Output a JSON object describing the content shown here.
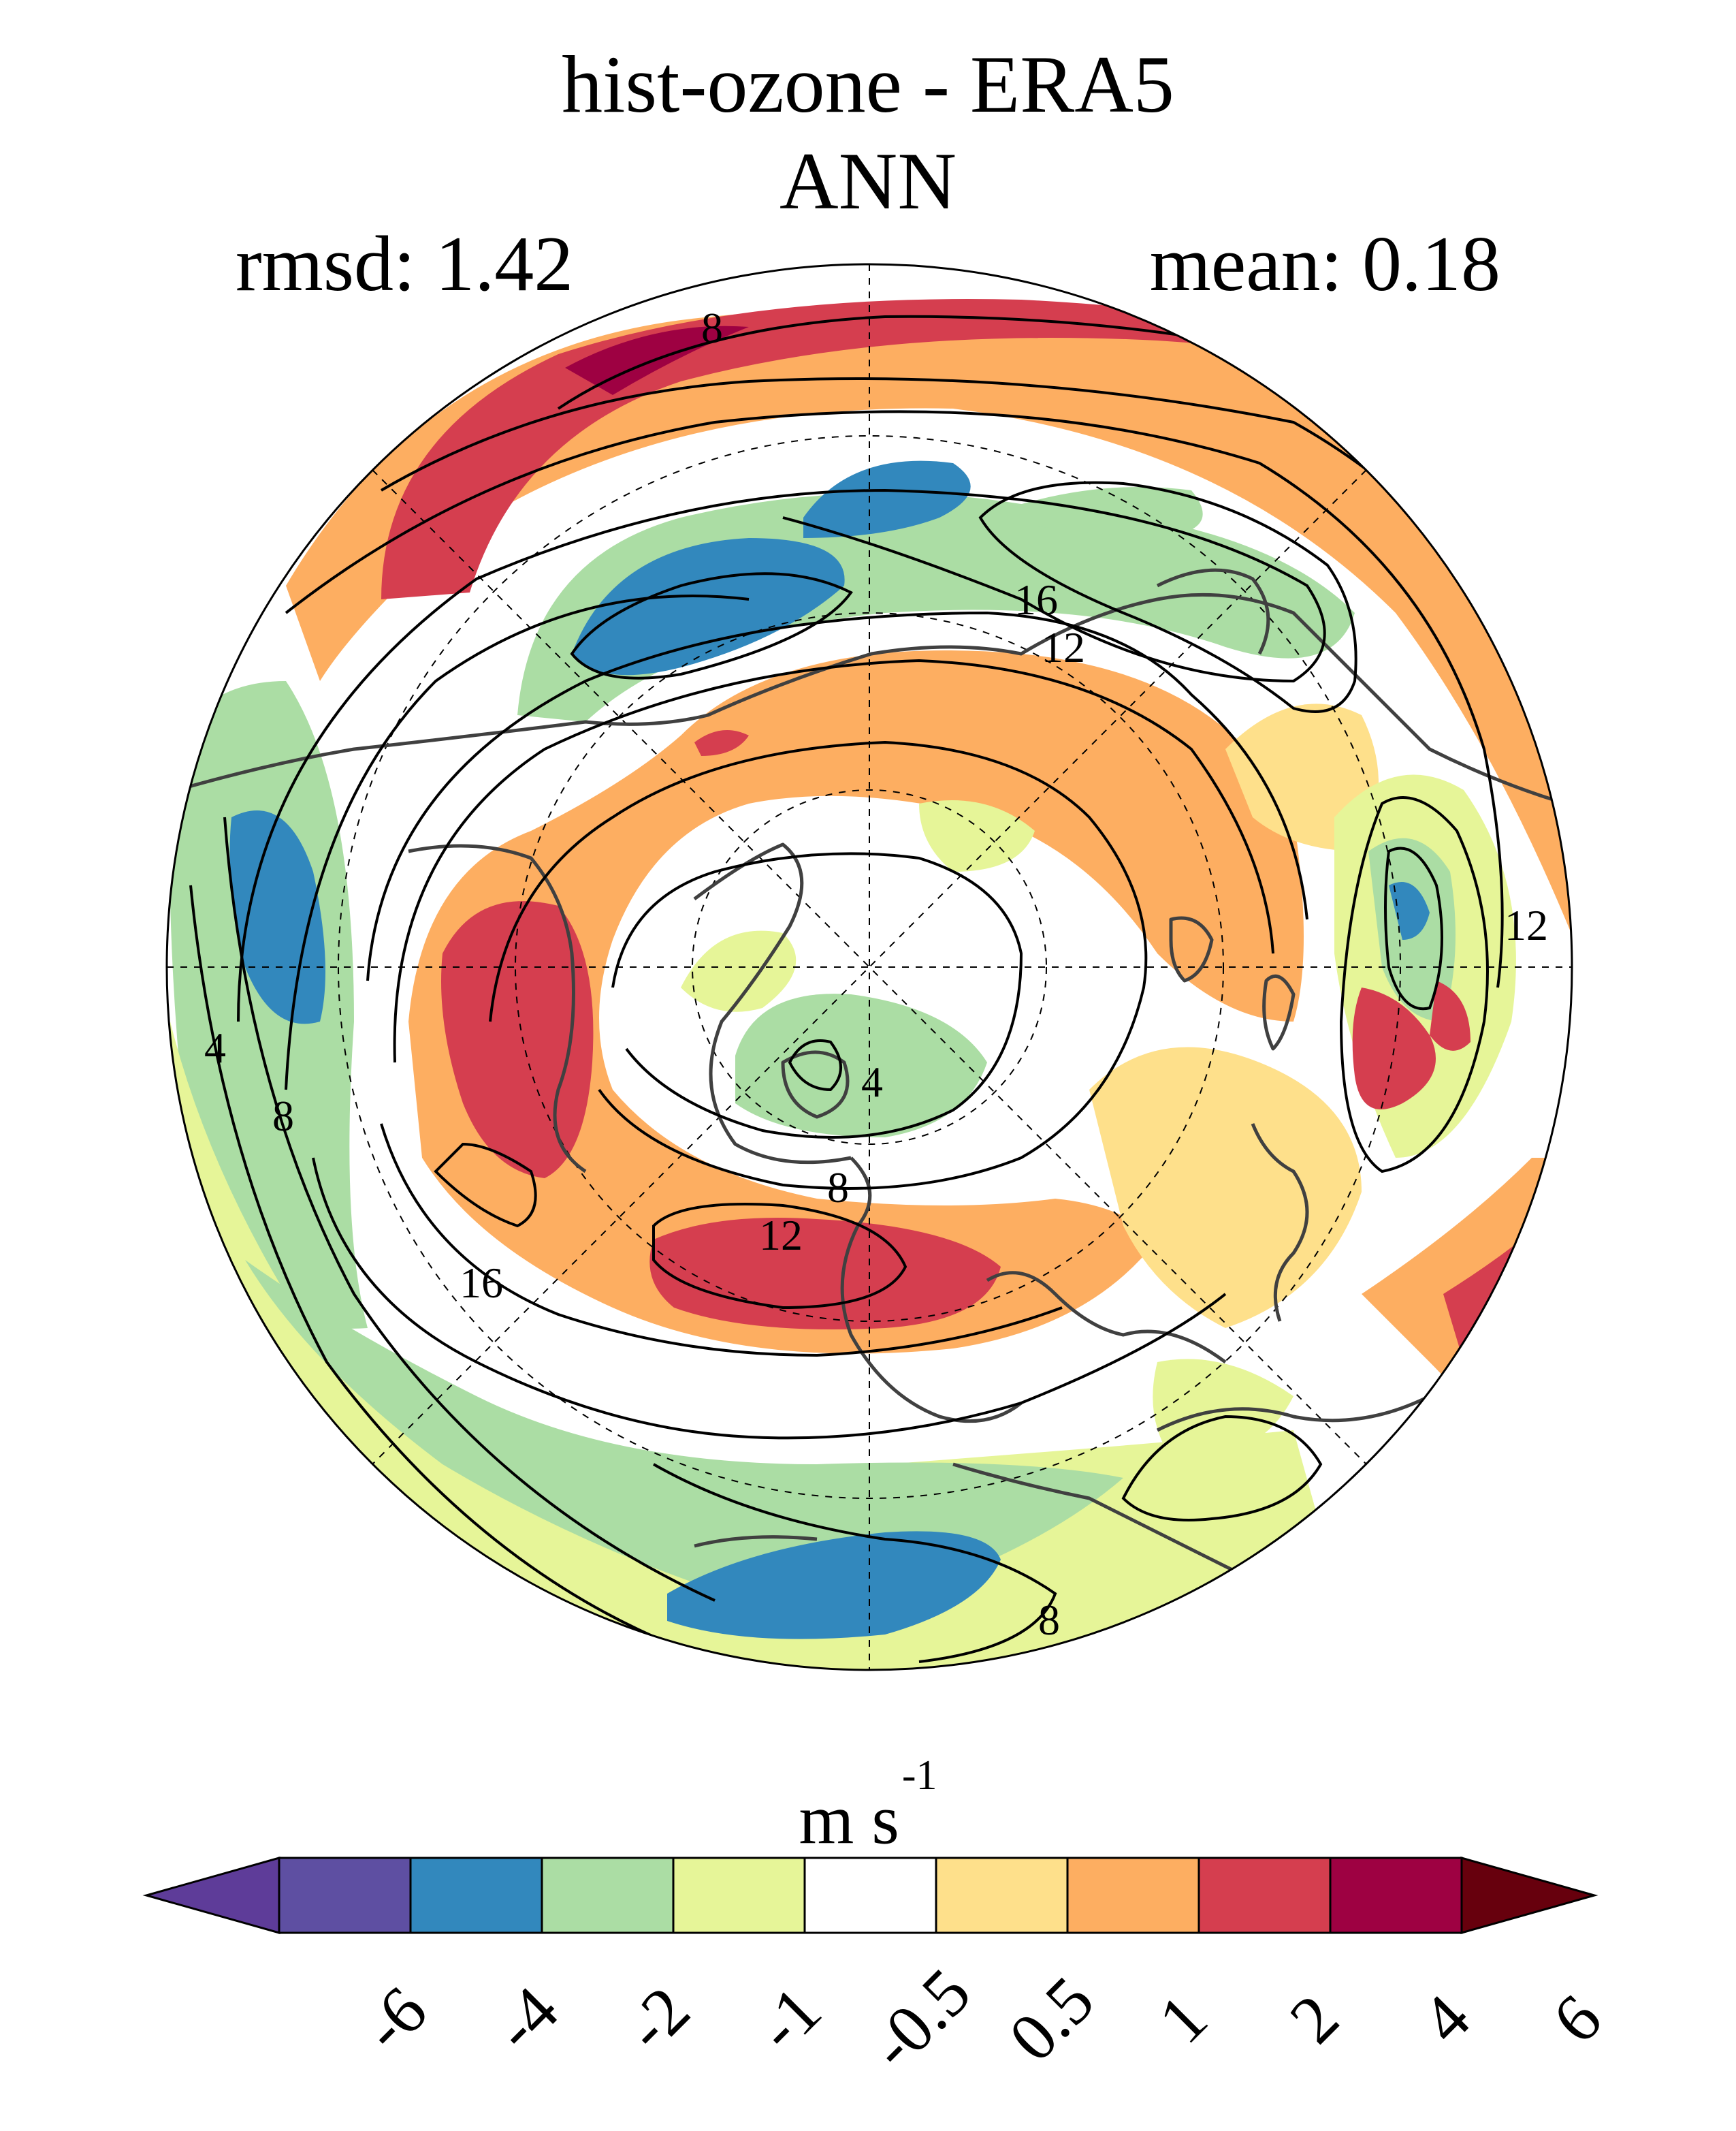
{
  "title": "hist-ozone - ERA5",
  "season": "ANN",
  "stats": {
    "rmsd_label": "rmsd: 1.42",
    "mean_label": "mean: 0.18"
  },
  "colorbar": {
    "unit_base": "m s",
    "unit_exp": "-1",
    "tick_labels": [
      "-6",
      "-4",
      "-2",
      "-1",
      "-0.5",
      "0.5",
      "1",
      "2",
      "4",
      "6"
    ],
    "colors": [
      "#5e3c99",
      "#5e4fa2",
      "#3288bd",
      "#abdda4",
      "#e6f598",
      "#ffffff",
      "#fee08b",
      "#fdae61",
      "#d53e4f",
      "#9e0142",
      "#67000d"
    ]
  },
  "contours": {
    "labels": [
      "8",
      "16",
      "12",
      "12",
      "4",
      "4",
      "8",
      "8",
      "12",
      "16",
      "8"
    ]
  }
}
